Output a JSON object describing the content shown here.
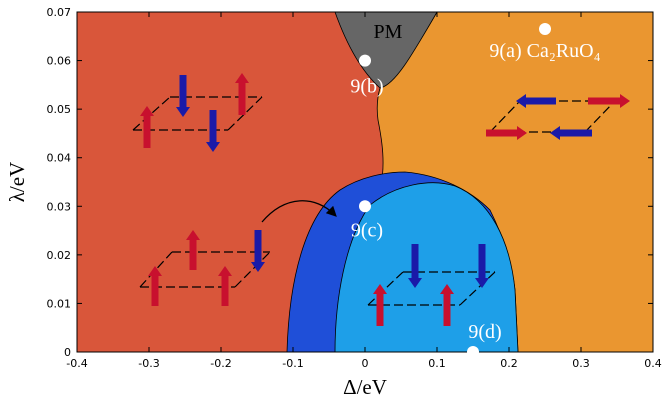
{
  "chart_data": {
    "type": "scatter",
    "xlabel": "Δ/eV",
    "ylabel": "λ/eV",
    "xlim": [
      -0.4,
      0.4
    ],
    "ylim": [
      0,
      0.07
    ],
    "xticks": [
      -0.4,
      -0.3,
      -0.2,
      -0.1,
      0,
      0.1,
      0.2,
      0.3,
      0.4
    ],
    "yticks": [
      0,
      0.01,
      0.02,
      0.03,
      0.04,
      0.05,
      0.06,
      0.07
    ],
    "x": [
      0.25,
      0,
      0,
      0.15
    ],
    "y": [
      0.0665,
      0.06,
      0.03,
      0
    ],
    "point_labels": [
      "9(a) Ca₂RuO₄",
      "9(b)",
      "9(c)",
      "9(d)"
    ],
    "color": "#ffffff",
    "annotations": [
      "PM"
    ]
  }
}
